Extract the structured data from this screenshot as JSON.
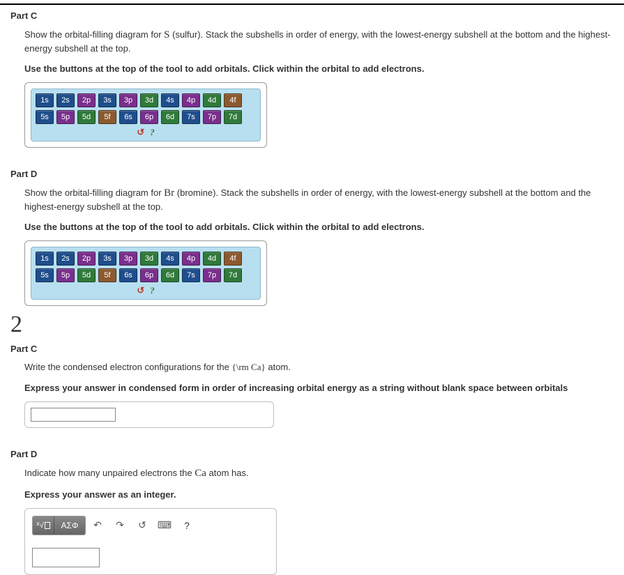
{
  "orbital_tool": {
    "background_color": "#b8dff0",
    "panel_border_color": "#8fb9cc",
    "orbital_colors": {
      "s": "#1f4e8c",
      "p": "#7a2f8c",
      "d": "#2f7a3a",
      "f": "#8c5a2f"
    },
    "row1": [
      "1s",
      "2s",
      "2p",
      "3s",
      "3p",
      "3d",
      "4s",
      "4p",
      "4d",
      "4f"
    ],
    "row2": [
      "5s",
      "5p",
      "5d",
      "5f",
      "6s",
      "6p",
      "6d",
      "7s",
      "7p",
      "7d"
    ],
    "reset_glyph": "↺",
    "help_glyph": "?"
  },
  "partC1": {
    "title": "Part C",
    "prompt_pre": "Show the orbital-filling diagram for ",
    "element": "S",
    "element_name": " (sulfur). ",
    "prompt_post": "Stack the subshells in order of energy, with the lowest-energy subshell at the bottom and the highest-energy subshell at the top.",
    "instruction": "Use the buttons at the top of the tool to add orbitals. Click within the orbital to add electrons."
  },
  "partD1": {
    "title": "Part D",
    "prompt_pre": "Show the orbital-filling diagram for ",
    "element": "Br",
    "element_name": " (bromine). ",
    "prompt_post": "Stack the subshells in order of energy, with the lowest-energy subshell at the bottom and the highest-energy subshell at the top.",
    "instruction": "Use the buttons at the top of the tool to add orbitals. Click within the orbital to add electrons."
  },
  "section_number": "2",
  "partC2": {
    "title": "Part C",
    "prompt_pre": "Write the condensed electron configurations for the ",
    "element_tex": "{\\rm Ca}",
    "prompt_post": " atom.",
    "instruction": "Express your answer in condensed form in order of increasing orbital energy as a string without blank space between orbitals"
  },
  "partD2": {
    "title": "Part D",
    "prompt_pre": "Indicate how many unpaired electrons the ",
    "element": "Ca",
    "prompt_post": " atom has.",
    "instruction": "Express your answer as an integer.",
    "toolbar": {
      "template_label": "x√",
      "greek_label": "ΑΣΦ",
      "undo_glyph": "↶",
      "redo_glyph": "↷",
      "reset_glyph": "↺",
      "keyboard_glyph": "⌨",
      "help_glyph": "?"
    }
  }
}
